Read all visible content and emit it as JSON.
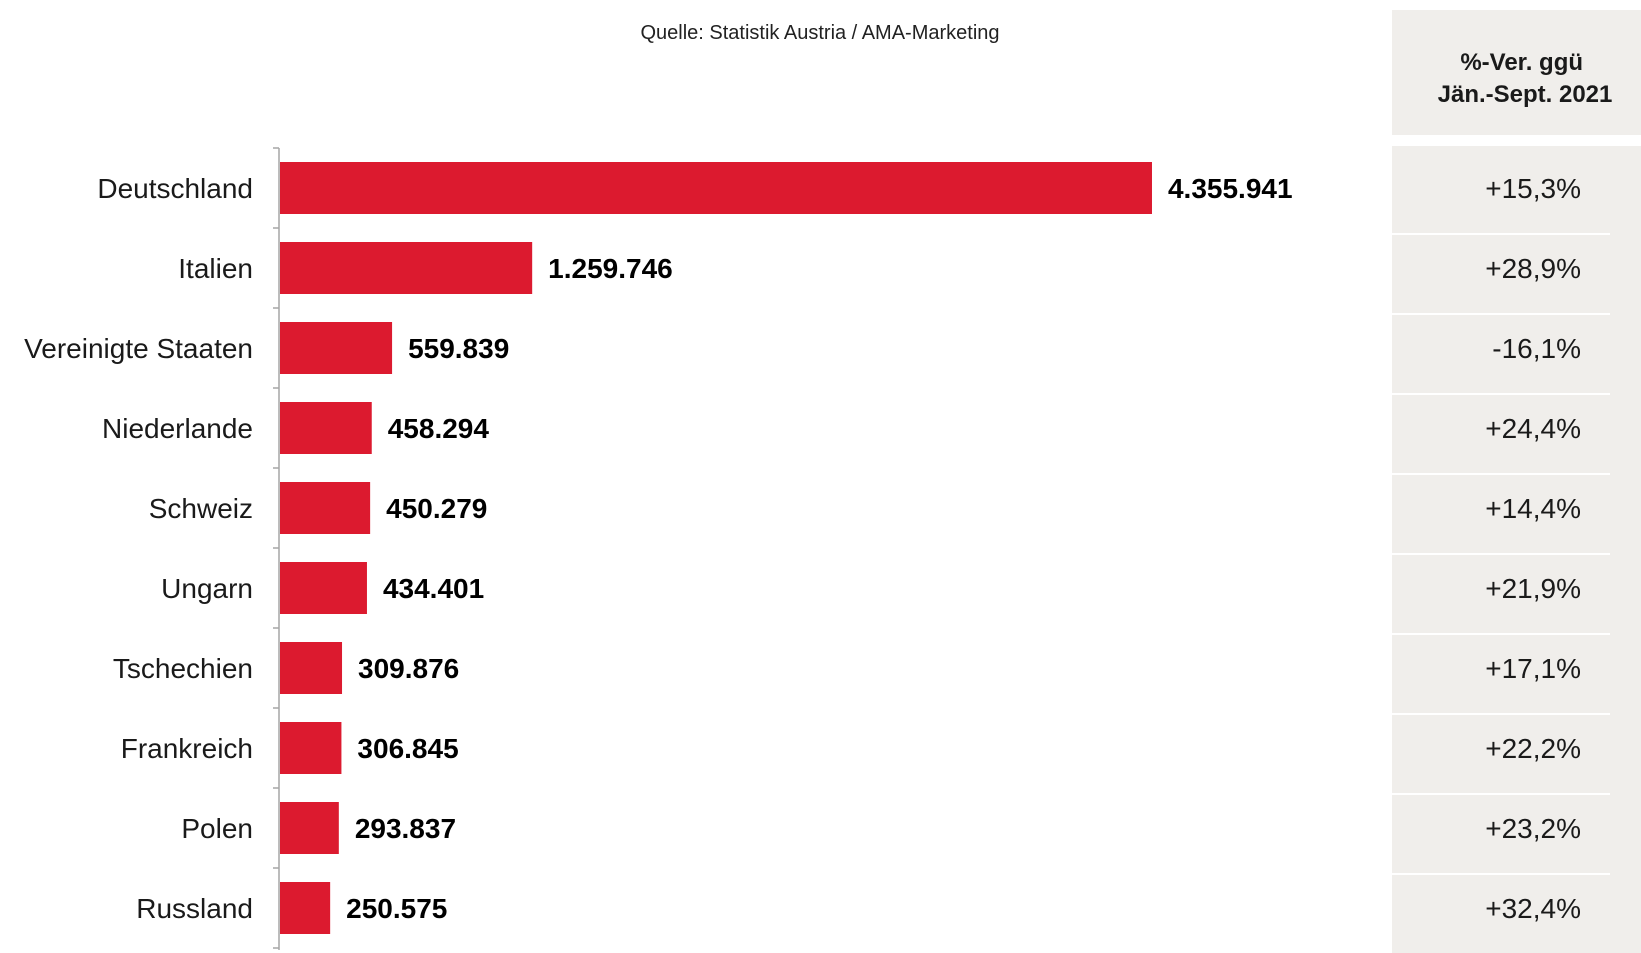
{
  "source": "Quelle: Statistik Austria / AMA-Marketing",
  "colors": {
    "bar": "#dc1a2f",
    "panel": "#f0eeeb",
    "axis": "#a6a6a6"
  },
  "chart_data": {
    "type": "bar",
    "orientation": "horizontal",
    "categories": [
      "Deutschland",
      "Italien",
      "Vereinigte Staaten",
      "Niederlande",
      "Schweiz",
      "Ungarn",
      "Tschechien",
      "Frankreich",
      "Polen",
      "Russland"
    ],
    "values": [
      4355941,
      1259746,
      559839,
      458294,
      450279,
      434401,
      309876,
      306845,
      293837,
      250575
    ],
    "value_labels": [
      "4.355.941",
      "1.259.746",
      "559.839",
      "458.294",
      "450.279",
      "434.401",
      "309.876",
      "306.845",
      "293.837",
      "250.575"
    ],
    "xlim": [
      0,
      5450000
    ],
    "grid": false,
    "change_column": {
      "header": [
        "%-Ver. ggü",
        "Jän.-Sept. 2021"
      ],
      "values": [
        "+15,3%",
        "+28,9%",
        "-16,1%",
        "+24,4%",
        "+14,4%",
        "+21,9%",
        "+17,1%",
        "+22,2%",
        "+23,2%",
        "+32,4%"
      ]
    }
  }
}
